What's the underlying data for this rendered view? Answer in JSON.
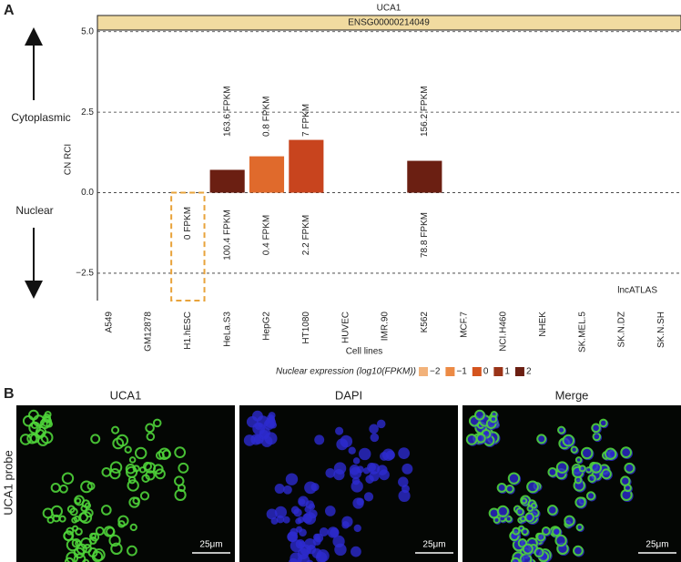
{
  "panel_labels": [
    "A",
    "B"
  ],
  "chart_data": {
    "type": "bar",
    "title": "UCA1",
    "subtitle": "ENSG00000214049",
    "y_label": "CN RCI",
    "x_label": "Cell lines",
    "categories": [
      "A549",
      "GM12878",
      "H1.hESC",
      "HeLa.S3",
      "HepG2",
      "HT1080",
      "HUVEC",
      "IMR.90",
      "K562",
      "MCF.7",
      "NCI.H460",
      "NHEK",
      "SK.MEL.5",
      "SK.N.DZ",
      "SK.N.SH"
    ],
    "values": [
      null,
      null,
      0,
      0.71,
      1.13,
      1.64,
      null,
      null,
      0.99,
      null,
      null,
      null,
      null,
      null,
      null
    ],
    "colors": [
      null,
      null,
      "#e8a33b",
      "#6b1f12",
      "#e06a2c",
      "#c8441e",
      null,
      null,
      "#6b1f12",
      null,
      null,
      null,
      null,
      null,
      null
    ],
    "cytoplasmic_labels": [
      null,
      null,
      null,
      "163.6 FPKM",
      "0.8 FPKM",
      "7 FPKM",
      null,
      null,
      "156.2 FPKM",
      null,
      null,
      null,
      null,
      null,
      null
    ],
    "nuclear_labels": [
      null,
      null,
      "0 FPKM",
      "100.4 FPKM",
      "0.4 FPKM",
      "2.2 FPKM",
      null,
      null,
      "78.8 FPKM",
      null,
      null,
      null,
      null,
      null,
      null
    ],
    "ylim": [
      -3.35,
      5.05
    ],
    "yticks": [
      {
        "value": -2.5,
        "label": "−2.5"
      },
      {
        "value": 0,
        "label": "0.0"
      },
      2.5,
      {
        "value": 5,
        "label": "5.0"
      }
    ],
    "grid": true,
    "annotations": {
      "top": "Cytoplasmic",
      "bottom": "Nuclear",
      "source": "lncATLAS"
    },
    "legend": {
      "title": "Nuclear expression (log10(FPKM))",
      "labels": [
        "−2",
        "−1",
        "0",
        "1",
        "2"
      ],
      "colors": [
        "#f2b27a",
        "#ec8a45",
        "#d4541e",
        "#9a3418",
        "#6b1f12"
      ]
    }
  },
  "images": {
    "titles": [
      "UCA1",
      "DAPI",
      "Merge"
    ],
    "row_label": "UCA1 probe",
    "scale_bar": "25μm"
  }
}
